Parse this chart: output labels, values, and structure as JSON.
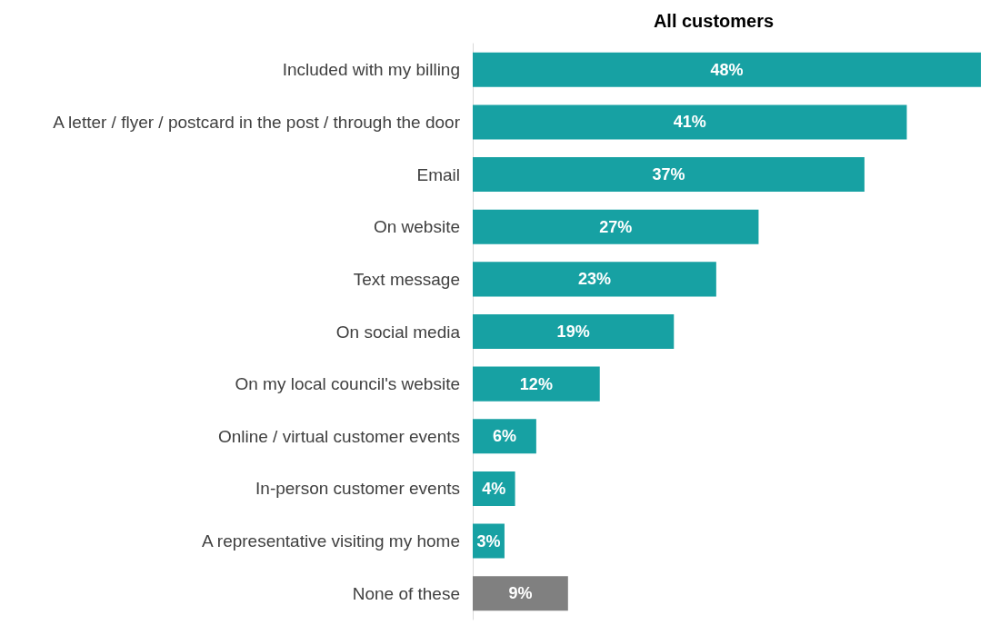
{
  "chart_data": {
    "type": "bar",
    "orientation": "horizontal",
    "title": "All customers",
    "categories": [
      "Included with my billing",
      "A letter / flyer / postcard in the post / through the door",
      "Email",
      "On website",
      "Text message",
      "On social media",
      "On my local council's website",
      "Online / virtual customer events",
      "In-person customer events",
      "A representative visiting my home",
      "None of these"
    ],
    "values": [
      48,
      41,
      37,
      27,
      23,
      19,
      12,
      6,
      4,
      3,
      9
    ],
    "colors": [
      "#17a1a3",
      "#17a1a3",
      "#17a1a3",
      "#17a1a3",
      "#17a1a3",
      "#17a1a3",
      "#17a1a3",
      "#17a1a3",
      "#17a1a3",
      "#17a1a3",
      "#808080"
    ],
    "value_labels": [
      "48%",
      "41%",
      "37%",
      "27%",
      "23%",
      "19%",
      "12%",
      "6%",
      "4%",
      "3%",
      "9%"
    ],
    "grid": false
  }
}
